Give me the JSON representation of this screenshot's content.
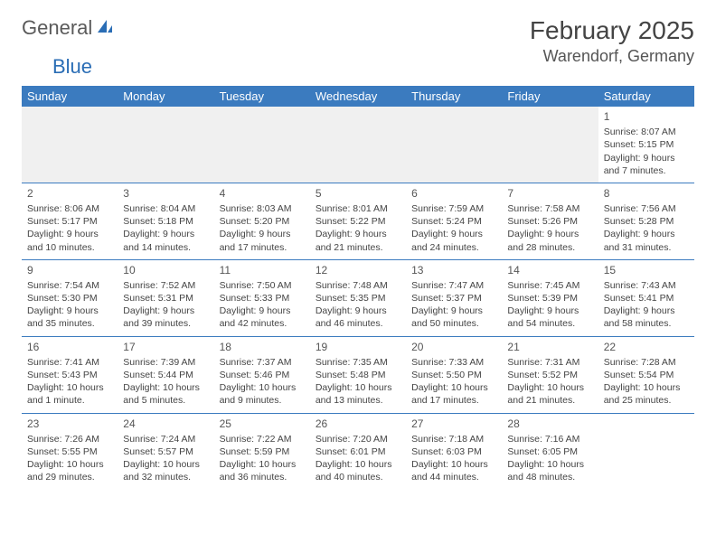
{
  "logo": {
    "part1": "General",
    "part2": "Blue"
  },
  "title": "February 2025",
  "location": "Warendorf, Germany",
  "colors": {
    "header_bg": "#3b7bbf",
    "header_fg": "#ffffff",
    "rule": "#3b7bbf",
    "logo_gray": "#5a5a5a",
    "logo_blue": "#2a6db5",
    "text": "#444444",
    "empty_bg": "#f0f0f0"
  },
  "typography": {
    "title_fontsize": 28,
    "location_fontsize": 18,
    "dayheader_fontsize": 13,
    "cell_fontsize": 10.5,
    "daynum_fontsize": 12
  },
  "day_headers": [
    "Sunday",
    "Monday",
    "Tuesday",
    "Wednesday",
    "Thursday",
    "Friday",
    "Saturday"
  ],
  "weeks": [
    [
      null,
      null,
      null,
      null,
      null,
      null,
      {
        "n": "1",
        "sunrise": "Sunrise: 8:07 AM",
        "sunset": "Sunset: 5:15 PM",
        "daylight": "Daylight: 9 hours and 7 minutes."
      }
    ],
    [
      {
        "n": "2",
        "sunrise": "Sunrise: 8:06 AM",
        "sunset": "Sunset: 5:17 PM",
        "daylight": "Daylight: 9 hours and 10 minutes."
      },
      {
        "n": "3",
        "sunrise": "Sunrise: 8:04 AM",
        "sunset": "Sunset: 5:18 PM",
        "daylight": "Daylight: 9 hours and 14 minutes."
      },
      {
        "n": "4",
        "sunrise": "Sunrise: 8:03 AM",
        "sunset": "Sunset: 5:20 PM",
        "daylight": "Daylight: 9 hours and 17 minutes."
      },
      {
        "n": "5",
        "sunrise": "Sunrise: 8:01 AM",
        "sunset": "Sunset: 5:22 PM",
        "daylight": "Daylight: 9 hours and 21 minutes."
      },
      {
        "n": "6",
        "sunrise": "Sunrise: 7:59 AM",
        "sunset": "Sunset: 5:24 PM",
        "daylight": "Daylight: 9 hours and 24 minutes."
      },
      {
        "n": "7",
        "sunrise": "Sunrise: 7:58 AM",
        "sunset": "Sunset: 5:26 PM",
        "daylight": "Daylight: 9 hours and 28 minutes."
      },
      {
        "n": "8",
        "sunrise": "Sunrise: 7:56 AM",
        "sunset": "Sunset: 5:28 PM",
        "daylight": "Daylight: 9 hours and 31 minutes."
      }
    ],
    [
      {
        "n": "9",
        "sunrise": "Sunrise: 7:54 AM",
        "sunset": "Sunset: 5:30 PM",
        "daylight": "Daylight: 9 hours and 35 minutes."
      },
      {
        "n": "10",
        "sunrise": "Sunrise: 7:52 AM",
        "sunset": "Sunset: 5:31 PM",
        "daylight": "Daylight: 9 hours and 39 minutes."
      },
      {
        "n": "11",
        "sunrise": "Sunrise: 7:50 AM",
        "sunset": "Sunset: 5:33 PM",
        "daylight": "Daylight: 9 hours and 42 minutes."
      },
      {
        "n": "12",
        "sunrise": "Sunrise: 7:48 AM",
        "sunset": "Sunset: 5:35 PM",
        "daylight": "Daylight: 9 hours and 46 minutes."
      },
      {
        "n": "13",
        "sunrise": "Sunrise: 7:47 AM",
        "sunset": "Sunset: 5:37 PM",
        "daylight": "Daylight: 9 hours and 50 minutes."
      },
      {
        "n": "14",
        "sunrise": "Sunrise: 7:45 AM",
        "sunset": "Sunset: 5:39 PM",
        "daylight": "Daylight: 9 hours and 54 minutes."
      },
      {
        "n": "15",
        "sunrise": "Sunrise: 7:43 AM",
        "sunset": "Sunset: 5:41 PM",
        "daylight": "Daylight: 9 hours and 58 minutes."
      }
    ],
    [
      {
        "n": "16",
        "sunrise": "Sunrise: 7:41 AM",
        "sunset": "Sunset: 5:43 PM",
        "daylight": "Daylight: 10 hours and 1 minute."
      },
      {
        "n": "17",
        "sunrise": "Sunrise: 7:39 AM",
        "sunset": "Sunset: 5:44 PM",
        "daylight": "Daylight: 10 hours and 5 minutes."
      },
      {
        "n": "18",
        "sunrise": "Sunrise: 7:37 AM",
        "sunset": "Sunset: 5:46 PM",
        "daylight": "Daylight: 10 hours and 9 minutes."
      },
      {
        "n": "19",
        "sunrise": "Sunrise: 7:35 AM",
        "sunset": "Sunset: 5:48 PM",
        "daylight": "Daylight: 10 hours and 13 minutes."
      },
      {
        "n": "20",
        "sunrise": "Sunrise: 7:33 AM",
        "sunset": "Sunset: 5:50 PM",
        "daylight": "Daylight: 10 hours and 17 minutes."
      },
      {
        "n": "21",
        "sunrise": "Sunrise: 7:31 AM",
        "sunset": "Sunset: 5:52 PM",
        "daylight": "Daylight: 10 hours and 21 minutes."
      },
      {
        "n": "22",
        "sunrise": "Sunrise: 7:28 AM",
        "sunset": "Sunset: 5:54 PM",
        "daylight": "Daylight: 10 hours and 25 minutes."
      }
    ],
    [
      {
        "n": "23",
        "sunrise": "Sunrise: 7:26 AM",
        "sunset": "Sunset: 5:55 PM",
        "daylight": "Daylight: 10 hours and 29 minutes."
      },
      {
        "n": "24",
        "sunrise": "Sunrise: 7:24 AM",
        "sunset": "Sunset: 5:57 PM",
        "daylight": "Daylight: 10 hours and 32 minutes."
      },
      {
        "n": "25",
        "sunrise": "Sunrise: 7:22 AM",
        "sunset": "Sunset: 5:59 PM",
        "daylight": "Daylight: 10 hours and 36 minutes."
      },
      {
        "n": "26",
        "sunrise": "Sunrise: 7:20 AM",
        "sunset": "Sunset: 6:01 PM",
        "daylight": "Daylight: 10 hours and 40 minutes."
      },
      {
        "n": "27",
        "sunrise": "Sunrise: 7:18 AM",
        "sunset": "Sunset: 6:03 PM",
        "daylight": "Daylight: 10 hours and 44 minutes."
      },
      {
        "n": "28",
        "sunrise": "Sunrise: 7:16 AM",
        "sunset": "Sunset: 6:05 PM",
        "daylight": "Daylight: 10 hours and 48 minutes."
      },
      null
    ]
  ]
}
